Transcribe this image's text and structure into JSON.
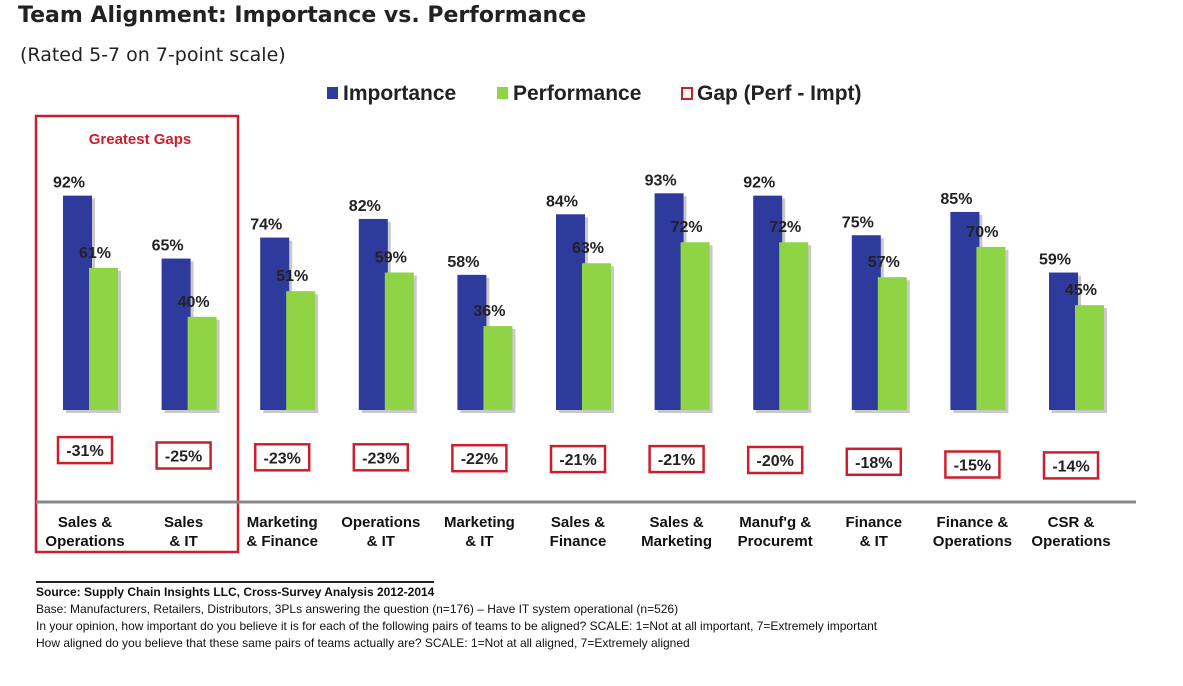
{
  "title": "Team Alignment: Importance vs. Performance",
  "subtitle": "(Rated 5-7 on 7-point scale)",
  "highlight_label": "Greatest Gaps",
  "colors": {
    "importance": "#2E3A9C",
    "performance": "#8FD444",
    "gap": "#CC1F2E",
    "axis": "#888888"
  },
  "chart_data": {
    "type": "bar",
    "categories": [
      [
        "Sales &",
        "Operations"
      ],
      [
        "Sales",
        "& IT"
      ],
      [
        "Marketing",
        "& Finance"
      ],
      [
        "Operations",
        "& IT"
      ],
      [
        "Marketing",
        "& IT"
      ],
      [
        "Sales &",
        "Finance"
      ],
      [
        "Sales &",
        "Marketing"
      ],
      [
        "Manuf'g &",
        "Procuremt"
      ],
      [
        "Finance",
        "& IT"
      ],
      [
        "Finance &",
        "Operations"
      ],
      [
        "CSR &",
        "Operations"
      ]
    ],
    "series": [
      {
        "name": "Importance",
        "values": [
          92,
          65,
          74,
          82,
          58,
          84,
          93,
          92,
          75,
          85,
          59
        ],
        "labels": [
          "92%",
          "65%",
          "74%",
          "82%",
          "58%",
          "84%",
          "93%",
          "92%",
          "75%",
          "85%",
          "59%"
        ]
      },
      {
        "name": "Performance",
        "values": [
          61,
          40,
          51,
          59,
          36,
          63,
          72,
          72,
          57,
          70,
          45
        ],
        "labels": [
          "61%",
          "40%",
          "51%",
          "59%",
          "36%",
          "63%",
          "72%",
          "72%",
          "57%",
          "70%",
          "45%"
        ]
      },
      {
        "name": "Gap (Perf - Impt)",
        "values": [
          -31,
          -25,
          -23,
          -23,
          -22,
          -21,
          -21,
          -20,
          -18,
          -15,
          -14
        ],
        "labels": [
          "-31%",
          "-25%",
          "-23%",
          "-23%",
          "-22%",
          "-21%",
          "-21%",
          "-20%",
          "-18%",
          "-15%",
          "-14%"
        ]
      }
    ],
    "ylim": [
      0,
      100
    ],
    "legend": "top-center",
    "highlighted_categories": [
      0,
      1
    ]
  },
  "source": {
    "title": "Source: Supply Chain Insights LLC, Cross-Survey Analysis 2012-2014",
    "lines": [
      "Base: Manufacturers, Retailers, Distributors, 3PLs answering the question (n=176) – Have IT system operational (n=526)",
      "In your opinion, how important do you believe it is for each of the following pairs of teams to be aligned? SCALE: 1=Not at all important, 7=Extremely important",
      "How aligned do you believe that these same pairs of teams actually are? SCALE: 1=Not at all aligned, 7=Extremely aligned"
    ]
  }
}
